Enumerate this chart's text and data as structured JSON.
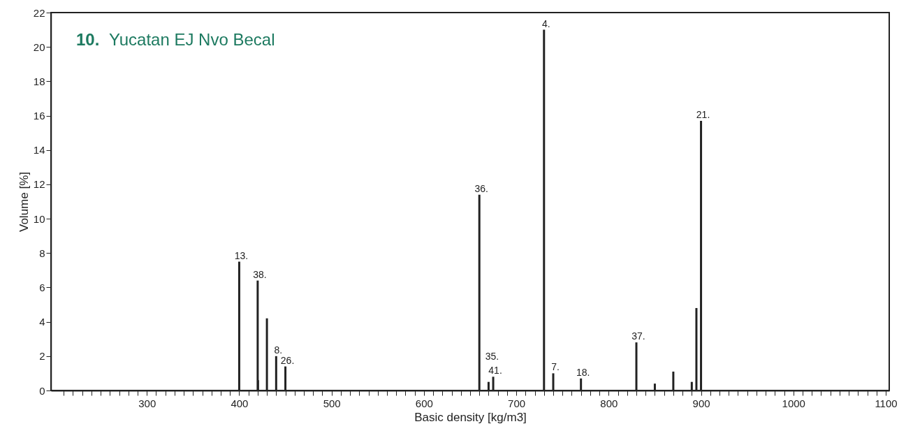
{
  "chart_data": {
    "type": "bar",
    "title": "10. Yucatan EJ Nvo Becal",
    "xlabel": "Basic density [kg/m3]",
    "ylabel": "Volume [%]",
    "x": [
      400,
      420,
      421,
      430,
      440,
      450,
      660,
      670,
      675,
      730,
      740,
      770,
      830,
      850,
      870,
      890,
      895,
      900
    ],
    "values": [
      7.5,
      6.4,
      0.6,
      4.2,
      2.0,
      1.4,
      11.4,
      0.5,
      0.8,
      21.0,
      1.0,
      0.7,
      2.8,
      0.4,
      1.1,
      0.5,
      4.8,
      15.7
    ],
    "annotations": [
      {
        "text": "13.",
        "x": 400,
        "y": 7.5
      },
      {
        "text": "38.",
        "x": 420,
        "y": 6.4
      },
      {
        "text": "8.",
        "x": 440,
        "y": 2.0
      },
      {
        "text": "26.",
        "x": 450,
        "y": 1.4
      },
      {
        "text": "36.",
        "x": 660,
        "y": 11.4
      },
      {
        "text": "35.",
        "x": 670,
        "y": 0.5
      },
      {
        "text": "41.",
        "x": 675,
        "y": 0.8
      },
      {
        "text": "4.",
        "x": 730,
        "y": 21.0
      },
      {
        "text": "7.",
        "x": 740,
        "y": 1.0
      },
      {
        "text": "18.",
        "x": 770,
        "y": 0.7
      },
      {
        "text": "37.",
        "x": 830,
        "y": 2.8
      },
      {
        "text": "21.",
        "x": 900,
        "y": 15.7
      }
    ],
    "color": "#222222",
    "xlim": [
      200,
      1100
    ],
    "ylim": [
      0,
      22
    ],
    "xticks": [
      {
        "value": 210,
        "label": null
      },
      {
        "value": 220,
        "label": null
      },
      {
        "value": 230,
        "label": null
      },
      {
        "value": 240,
        "label": null
      },
      {
        "value": 250,
        "label": null
      },
      {
        "value": 260,
        "label": null
      },
      {
        "value": 270,
        "label": null
      },
      {
        "value": 280,
        "label": null
      },
      {
        "value": 290,
        "label": null
      },
      300,
      {
        "value": 310,
        "label": null
      },
      {
        "value": 320,
        "label": null
      },
      {
        "value": 330,
        "label": null
      },
      {
        "value": 340,
        "label": null
      },
      {
        "value": 350,
        "label": null
      },
      {
        "value": 360,
        "label": null
      },
      {
        "value": 370,
        "label": null
      },
      {
        "value": 380,
        "label": null
      },
      {
        "value": 390,
        "label": null
      },
      400,
      {
        "value": 410,
        "label": null
      },
      {
        "value": 420,
        "label": null
      },
      {
        "value": 430,
        "label": null
      },
      {
        "value": 440,
        "label": null
      },
      {
        "value": 450,
        "label": null
      },
      {
        "value": 460,
        "label": null
      },
      {
        "value": 470,
        "label": null
      },
      {
        "value": 480,
        "label": null
      },
      {
        "value": 490,
        "label": null
      },
      500,
      {
        "value": 510,
        "label": null
      },
      {
        "value": 520,
        "label": null
      },
      {
        "value": 530,
        "label": null
      },
      {
        "value": 540,
        "label": null
      },
      {
        "value": 550,
        "label": null
      },
      {
        "value": 560,
        "label": null
      },
      {
        "value": 570,
        "label": null
      },
      {
        "value": 580,
        "label": null
      },
      {
        "value": 590,
        "label": null
      },
      600,
      {
        "value": 610,
        "label": null
      },
      {
        "value": 620,
        "label": null
      },
      {
        "value": 630,
        "label": null
      },
      {
        "value": 640,
        "label": null
      },
      {
        "value": 650,
        "label": null
      },
      {
        "value": 660,
        "label": null
      },
      {
        "value": 670,
        "label": null
      },
      {
        "value": 680,
        "label": null
      },
      {
        "value": 690,
        "label": null
      },
      700,
      {
        "value": 710,
        "label": null
      },
      {
        "value": 720,
        "label": null
      },
      {
        "value": 730,
        "label": null
      },
      {
        "value": 740,
        "label": null
      },
      {
        "value": 750,
        "label": null
      },
      {
        "value": 760,
        "label": null
      },
      {
        "value": 770,
        "label": null
      },
      {
        "value": 780,
        "label": null
      },
      {
        "value": 790,
        "label": null
      },
      800,
      {
        "value": 810,
        "label": null
      },
      {
        "value": 820,
        "label": null
      },
      {
        "value": 830,
        "label": null
      },
      {
        "value": 840,
        "label": null
      },
      {
        "value": 850,
        "label": null
      },
      {
        "value": 860,
        "label": null
      },
      {
        "value": 870,
        "label": null
      },
      {
        "value": 880,
        "label": null
      },
      {
        "value": 890,
        "label": null
      },
      900,
      {
        "value": 910,
        "label": null
      },
      {
        "value": 920,
        "label": null
      },
      {
        "value": 930,
        "label": null
      },
      {
        "value": 940,
        "label": null
      },
      {
        "value": 950,
        "label": null
      },
      {
        "value": 960,
        "label": null
      },
      {
        "value": 970,
        "label": null
      },
      {
        "value": 980,
        "label": null
      },
      {
        "value": 990,
        "label": null
      },
      1000,
      {
        "value": 1010,
        "label": null
      },
      {
        "value": 1020,
        "label": null
      },
      {
        "value": 1030,
        "label": null
      },
      {
        "value": 1040,
        "label": null
      },
      {
        "value": 1050,
        "label": null
      },
      {
        "value": 1060,
        "label": null
      },
      {
        "value": 1070,
        "label": null
      },
      {
        "value": 1080,
        "label": null
      },
      {
        "value": 1090,
        "label": null
      },
      1100
    ],
    "yticks": [
      0,
      2,
      4,
      6,
      8,
      10,
      12,
      14,
      16,
      18,
      20,
      22
    ],
    "grid": false
  }
}
